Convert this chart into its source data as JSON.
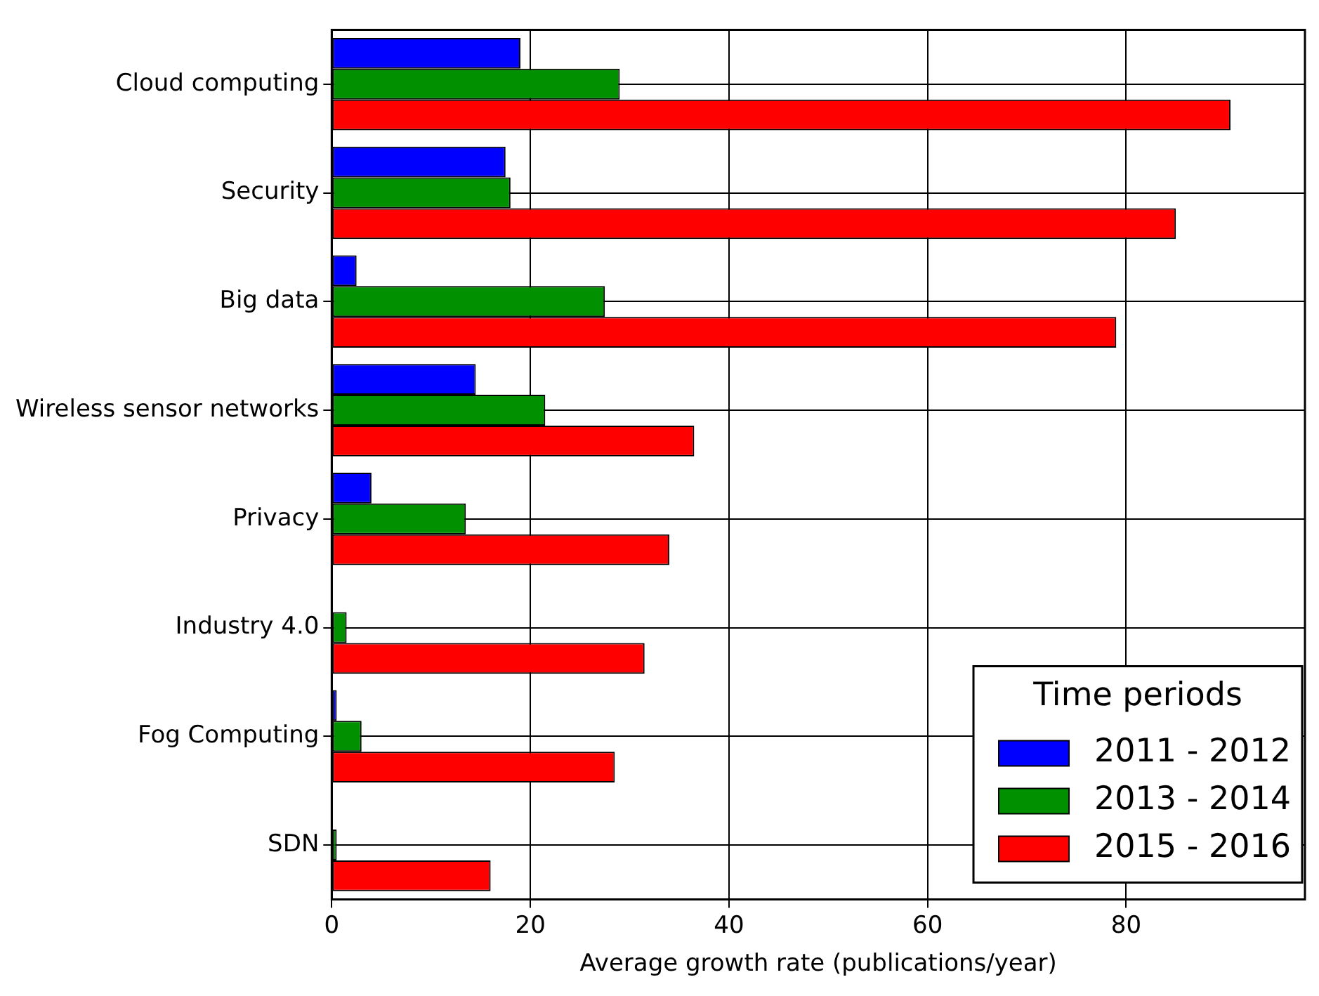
{
  "chart_data": {
    "type": "bar",
    "orientation": "horizontal",
    "xlabel": "Average growth rate (publications/year)",
    "legend_title": "Time periods",
    "categories": [
      "Cloud computing",
      "Security",
      "Big data",
      "Wireless sensor networks",
      "Privacy",
      "Industry 4.0",
      "Fog Computing",
      "SDN"
    ],
    "series": [
      {
        "name": "2011 - 2012",
        "color": "#0000ff",
        "values": [
          19,
          17.5,
          2.5,
          14.5,
          4,
          0,
          0.5,
          0
        ]
      },
      {
        "name": "2013 - 2014",
        "color": "#009000",
        "values": [
          29,
          18,
          27.5,
          21.5,
          13.5,
          1.5,
          3,
          0.5
        ]
      },
      {
        "name": "2015 - 2016",
        "color": "#ff0000",
        "values": [
          90.5,
          85,
          79,
          36.5,
          34,
          31.5,
          28.5,
          16
        ]
      }
    ],
    "xlim": [
      0,
      98
    ],
    "xticks": [
      0,
      20,
      40,
      60,
      80
    ],
    "grid": true,
    "legend": "bottom right"
  }
}
